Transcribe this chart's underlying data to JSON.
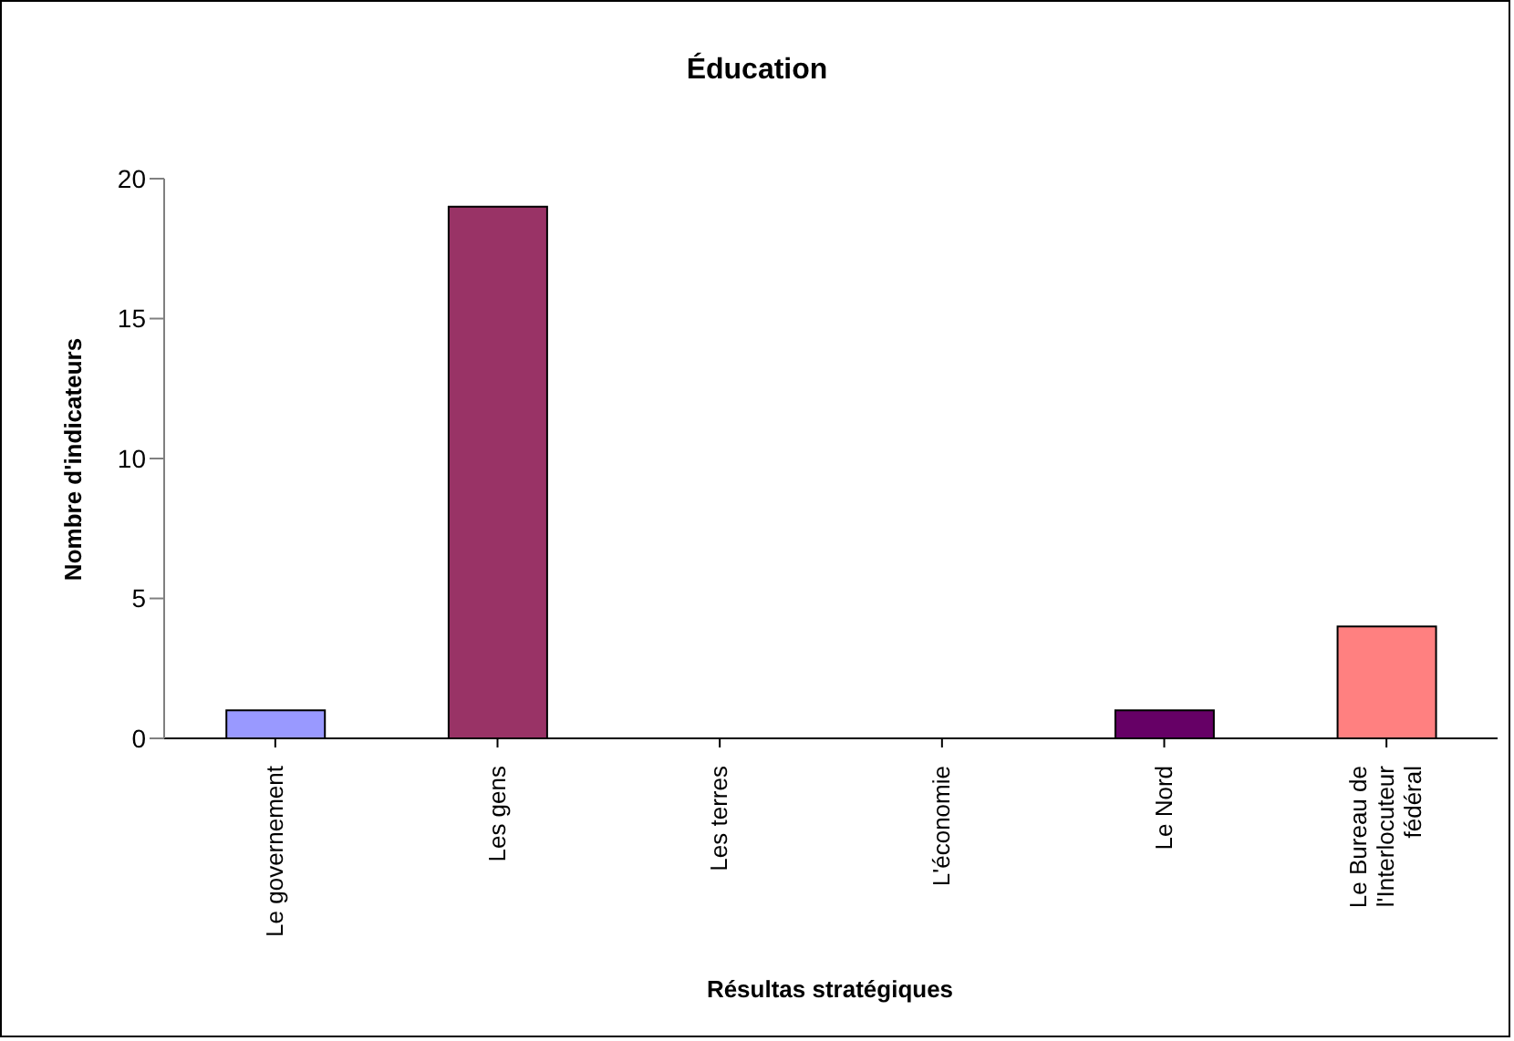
{
  "chart_data": {
    "type": "bar",
    "title": "Éducation",
    "xlabel": "Résultas stratégiques",
    "ylabel": "Nombre d'indicateurs",
    "categories": [
      "Le governement",
      "Les gens",
      "Les terres",
      "L'économie",
      "Le Nord",
      "Le Bureau de l'Interlocuteur fédéral"
    ],
    "values": [
      1,
      19,
      0,
      0,
      1,
      4
    ],
    "colors": [
      "#9999ff",
      "#993366",
      "#ffffcc",
      "#ccffff",
      "#660066",
      "#ff8080"
    ],
    "ylim": [
      0,
      20
    ],
    "yticks": [
      0,
      5,
      10,
      15,
      20
    ],
    "grid": false,
    "legend": false
  }
}
